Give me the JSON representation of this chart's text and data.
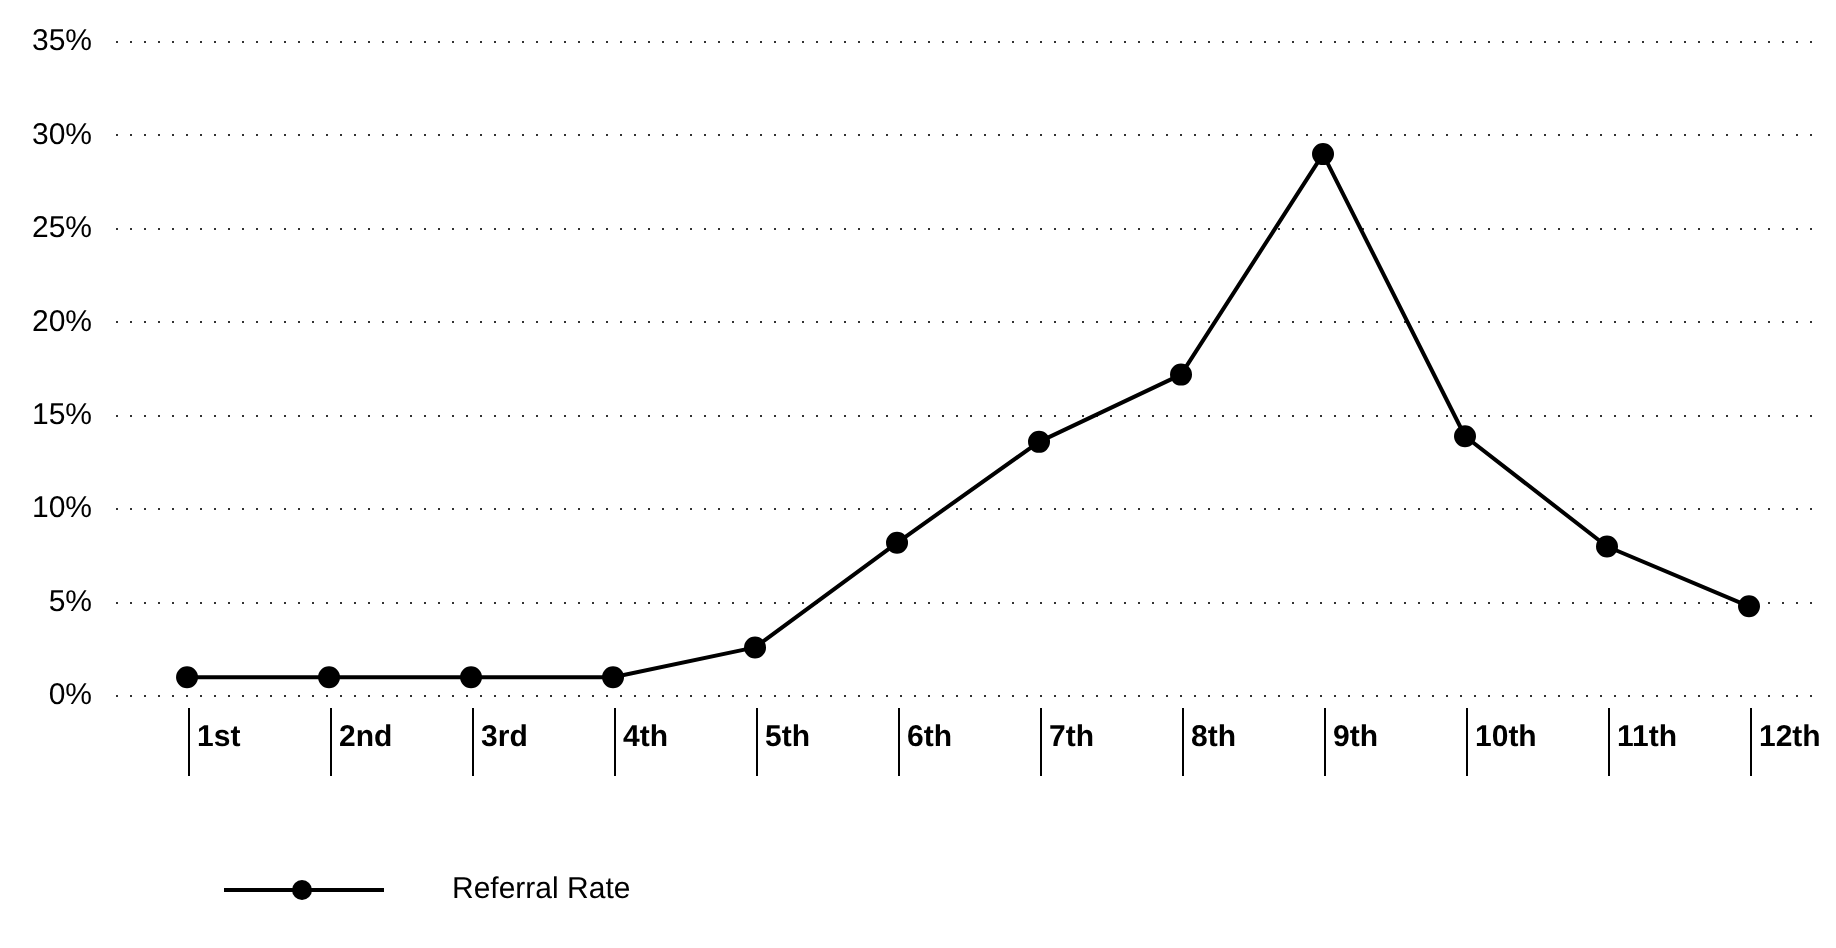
{
  "chart_data": {
    "type": "line",
    "categories": [
      "1st",
      "2nd",
      "3rd",
      "4th",
      "5th",
      "6th",
      "7th",
      "8th",
      "9th",
      "10th",
      "11th",
      "12th"
    ],
    "series": [
      {
        "name": "Referral Rate",
        "color": "#000000",
        "values": [
          1,
          1,
          1,
          1,
          2.6,
          8.2,
          13.6,
          17.2,
          29,
          13.9,
          8,
          4.8
        ]
      }
    ],
    "ylim": [
      0,
      35
    ],
    "yticks": [
      {
        "value": 0,
        "label": "0%"
      },
      {
        "value": 5,
        "label": "5%"
      },
      {
        "value": 10,
        "label": "10%"
      },
      {
        "value": 15,
        "label": "15%"
      },
      {
        "value": 20,
        "label": "20%"
      },
      {
        "value": 25,
        "label": "25%"
      },
      {
        "value": 30,
        "label": "30%"
      },
      {
        "value": 35,
        "label": "35%"
      }
    ],
    "grid": "y",
    "legend": "bottom left",
    "marker": "circle",
    "line_style": "solid"
  }
}
